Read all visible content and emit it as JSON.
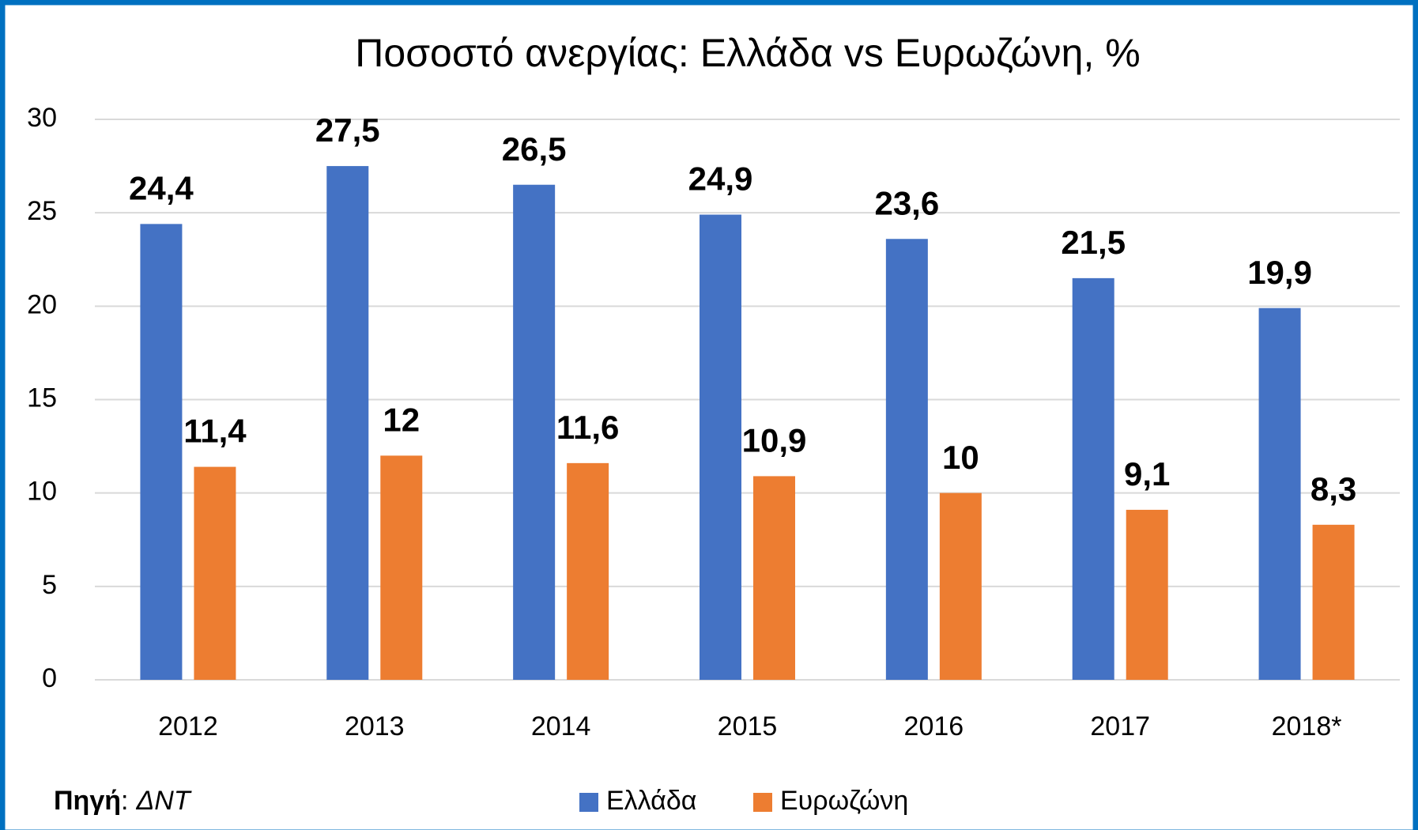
{
  "chart_data": {
    "type": "bar",
    "title": "Ποσοστό ανεργίας: Ελλάδα vs Ευρωζώνη, %",
    "categories": [
      "2012",
      "2013",
      "2014",
      "2015",
      "2016",
      "2017",
      "2018*"
    ],
    "series": [
      {
        "name": "Ελλάδα",
        "color": "#4472c4",
        "values": [
          24.4,
          27.5,
          26.5,
          24.9,
          23.6,
          21.5,
          19.9
        ],
        "value_labels": [
          "24,4",
          "27,5",
          "26,5",
          "24,9",
          "23,6",
          "21,5",
          "19,9"
        ]
      },
      {
        "name": "Ευρωζώνη",
        "color": "#ed7d31",
        "values": [
          11.4,
          12,
          11.6,
          10.9,
          10,
          9.1,
          8.3
        ],
        "value_labels": [
          "11,4",
          "12",
          "11,6",
          "10,9",
          "10",
          "9,1",
          "8,3"
        ]
      }
    ],
    "ylim": [
      0,
      30
    ],
    "yticks": [
      0,
      5,
      10,
      15,
      20,
      25,
      30
    ],
    "grid": true,
    "legend": "bottom",
    "source": {
      "label": "Πηγή",
      "separator": ":",
      "text": "ΔΝΤ"
    }
  }
}
